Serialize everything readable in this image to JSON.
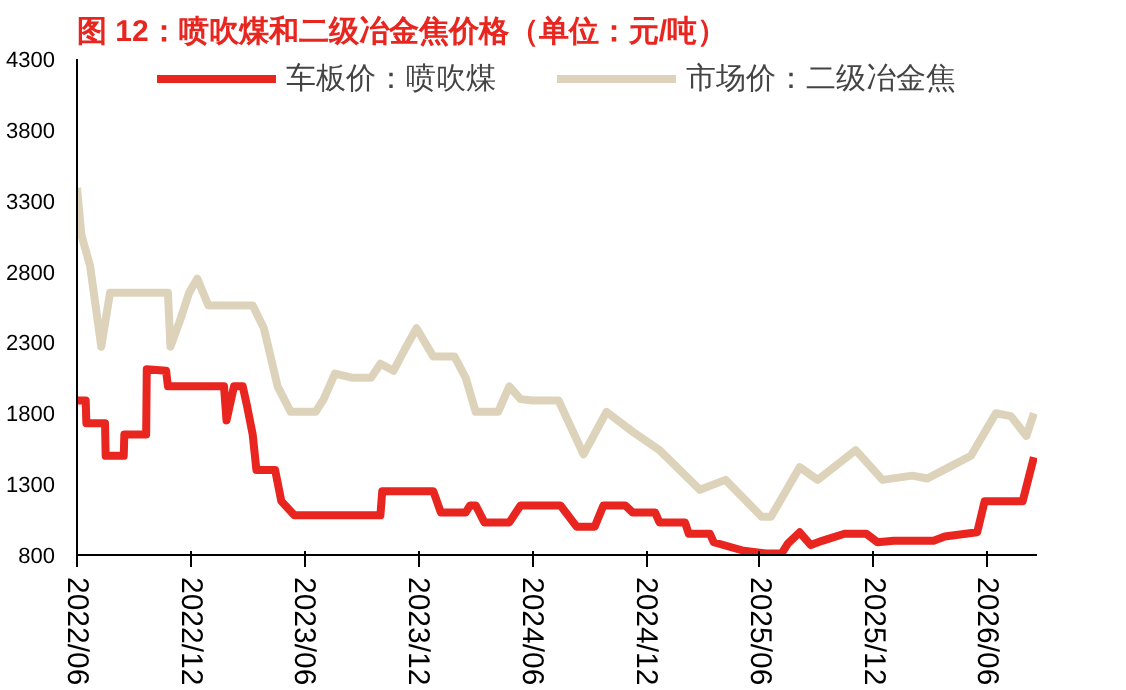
{
  "chart_data": {
    "type": "line",
    "title": "图 12：喷吹煤和二级冶金焦价格（单位：元/吨）",
    "xlim": [
      "2022-06-01",
      "2026-08-20"
    ],
    "xticks": [
      {
        "value": "2022-06-01",
        "label": "2022/06"
      },
      {
        "value": "2022-12-01",
        "label": "2022/12"
      },
      {
        "value": "2023-06-01",
        "label": "2023/06"
      },
      {
        "value": "2023-12-01",
        "label": "2023/12"
      },
      {
        "value": "2024-06-01",
        "label": "2024/06"
      },
      {
        "value": "2024-12-01",
        "label": "2024/12"
      },
      {
        "value": "2025-06-01",
        "label": "2025/06"
      },
      {
        "value": "2025-12-01",
        "label": "2025/12"
      },
      {
        "value": "2026-06-01",
        "label": "2026/06"
      }
    ],
    "ylim": [
      800,
      4300
    ],
    "yticks": [
      800,
      1300,
      1800,
      2300,
      2800,
      3300,
      3800,
      4300
    ],
    "grid": false,
    "legend": "top",
    "marker": "none",
    "line_style": "solid",
    "series": [
      {
        "name": "车板价：喷吹煤",
        "color": "#e8251f",
        "x": [
          "2022-06-01",
          "2022-06-15",
          "2022-06-16",
          "2022-07-16",
          "2022-07-17",
          "2022-08-15",
          "2022-08-16",
          "2022-09-20",
          "2022-09-21",
          "2022-10-22",
          "2022-10-25",
          "2023-01-23",
          "2023-01-27",
          "2023-02-08",
          "2023-02-22",
          "2023-03-01",
          "2023-03-10",
          "2023-03-16",
          "2023-04-15",
          "2023-04-25",
          "2023-05-16",
          "2023-10-01",
          "2023-10-04",
          "2023-12-25",
          "2024-01-06",
          "2024-02-15",
          "2024-02-22",
          "2024-03-02",
          "2024-03-16",
          "2024-04-25",
          "2024-05-13",
          "2024-07-16",
          "2024-08-11",
          "2024-09-09",
          "2024-09-23",
          "2024-10-28",
          "2024-11-09",
          "2024-12-15",
          "2024-12-22",
          "2025-02-01",
          "2025-02-07",
          "2025-03-13",
          "2025-03-19",
          "2025-05-06",
          "2025-06-11",
          "2025-07-06",
          "2025-07-16",
          "2025-08-04",
          "2025-08-22",
          "2025-09-09",
          "2025-10-15",
          "2025-11-19",
          "2025-12-07",
          "2026-01-02",
          "2026-03-07",
          "2026-03-25",
          "2026-05-16",
          "2026-05-28",
          "2026-07-28",
          "2026-08-15"
        ],
        "values": [
          1890,
          1890,
          1730,
          1730,
          1500,
          1500,
          1650,
          1650,
          2110,
          2100,
          1990,
          1990,
          1750,
          1990,
          1990,
          1850,
          1650,
          1400,
          1400,
          1180,
          1080,
          1080,
          1250,
          1250,
          1100,
          1100,
          1150,
          1150,
          1030,
          1030,
          1150,
          1150,
          1000,
          1000,
          1150,
          1150,
          1100,
          1100,
          1030,
          1030,
          950,
          950,
          890,
          830,
          810,
          810,
          880,
          960,
          870,
          900,
          950,
          950,
          890,
          900,
          900,
          930,
          960,
          1180,
          1180,
          1490
        ]
      },
      {
        "name": "市场价：二级冶金焦",
        "color": "#ddd3bb",
        "x": [
          "2022-06-01",
          "2022-06-08",
          "2022-06-22",
          "2022-07-10",
          "2022-07-24",
          "2022-10-25",
          "2022-10-29",
          "2022-11-13",
          "2022-11-28",
          "2022-12-11",
          "2022-12-29",
          "2023-03-10",
          "2023-03-28",
          "2023-04-19",
          "2023-05-10",
          "2023-06-19",
          "2023-07-02",
          "2023-07-20",
          "2023-08-18",
          "2023-09-16",
          "2023-10-01",
          "2023-10-22",
          "2023-11-09",
          "2023-11-28",
          "2023-12-25",
          "2024-01-28",
          "2024-02-15",
          "2024-03-02",
          "2024-04-07",
          "2024-04-25",
          "2024-05-13",
          "2024-06-01",
          "2024-07-13",
          "2024-08-22",
          "2024-09-28",
          "2024-11-09",
          "2024-12-22",
          "2025-02-25",
          "2025-04-07",
          "2025-06-04",
          "2025-06-19",
          "2025-08-04",
          "2025-09-02",
          "2025-11-02",
          "2025-12-15",
          "2026-02-01",
          "2026-02-25",
          "2026-04-01",
          "2026-05-06",
          "2026-06-15",
          "2026-07-09",
          "2026-08-03",
          "2026-08-15"
        ],
        "values": [
          3390,
          3060,
          2840,
          2270,
          2650,
          2650,
          2270,
          2450,
          2650,
          2750,
          2560,
          2560,
          2400,
          1990,
          1810,
          1810,
          1900,
          2080,
          2050,
          2050,
          2150,
          2100,
          2250,
          2400,
          2200,
          2200,
          2050,
          1810,
          1810,
          1990,
          1900,
          1890,
          1890,
          1510,
          1810,
          1670,
          1540,
          1260,
          1330,
          1070,
          1070,
          1420,
          1330,
          1540,
          1330,
          1360,
          1340,
          1420,
          1500,
          1800,
          1780,
          1640,
          1800
        ]
      }
    ]
  }
}
